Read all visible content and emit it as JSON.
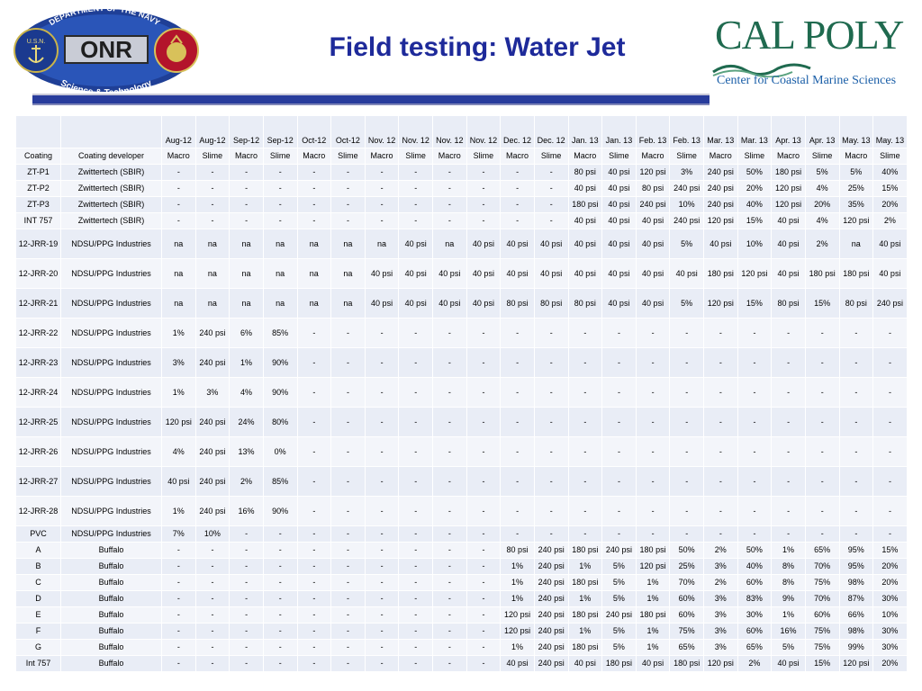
{
  "header": {
    "title": "Field testing: Water Jet",
    "onr_logo": {
      "text_department": "DEPARTMENT OF THE NAVY",
      "text_onr": "ONR",
      "text_science": "Science & Technology",
      "text_usn": "U.S.N."
    },
    "calpoly_logo": {
      "name": "CAL POLY",
      "subtitle": "Center for Coastal Marine Sciences"
    },
    "colors": {
      "title": "#1e2a9a",
      "rule": "#283c9c",
      "calpoly_green": "#1f6a4f",
      "calpoly_blue": "#1b5fa8"
    }
  },
  "table": {
    "months": [
      "Aug-12",
      "Aug-12",
      "Sep-12",
      "Sep-12",
      "Oct-12",
      "Oct-12",
      "Nov. 12",
      "Nov. 12",
      "Nov. 12",
      "Nov. 12",
      "Dec. 12",
      "Dec. 12",
      "Jan. 13",
      "Jan. 13",
      "Feb. 13",
      "Feb. 13",
      "Mar. 13",
      "Mar. 13",
      "Apr. 13",
      "Apr. 13",
      "May. 13",
      "May. 13"
    ],
    "header_coating": "Coating",
    "header_developer": "Coating developer",
    "types": [
      "Macro",
      "Slime",
      "Macro",
      "Slime",
      "Macro",
      "Slime",
      "Macro",
      "Slime",
      "Macro",
      "Slime",
      "Macro",
      "Slime",
      "Macro",
      "Slime",
      "Macro",
      "Slime",
      "Macro",
      "Slime",
      "Macro",
      "Slime",
      "Macro",
      "Slime"
    ],
    "rows": [
      {
        "coating": "ZT-P1",
        "developer": "Zwittertech (SBIR)",
        "values": [
          "-",
          "-",
          "-",
          "-",
          "-",
          "-",
          "-",
          "-",
          "-",
          "-",
          "-",
          "-",
          "80 psi",
          "40 psi",
          "120 psi",
          "3%",
          "240 psi",
          "50%",
          "180 psi",
          "5%",
          "5%",
          "40%"
        ]
      },
      {
        "coating": "ZT-P2",
        "developer": "Zwittertech (SBIR)",
        "values": [
          "-",
          "-",
          "-",
          "-",
          "-",
          "-",
          "-",
          "-",
          "-",
          "-",
          "-",
          "-",
          "40 psi",
          "40 psi",
          "80 psi",
          "240 psi",
          "240 psi",
          "20%",
          "120 psi",
          "4%",
          "25%",
          "15%"
        ]
      },
      {
        "coating": "ZT-P3",
        "developer": "Zwittertech (SBIR)",
        "values": [
          "-",
          "-",
          "-",
          "-",
          "-",
          "-",
          "-",
          "-",
          "-",
          "-",
          "-",
          "-",
          "180 psi",
          "40 psi",
          "240 psi",
          "10%",
          "240 psi",
          "40%",
          "120 psi",
          "20%",
          "35%",
          "20%"
        ]
      },
      {
        "coating": "INT 757",
        "developer": "Zwittertech (SBIR)",
        "values": [
          "-",
          "-",
          "-",
          "-",
          "-",
          "-",
          "-",
          "-",
          "-",
          "-",
          "-",
          "-",
          "40 psi",
          "40 psi",
          "40 psi",
          "240 psi",
          "120 psi",
          "15%",
          "40 psi",
          "4%",
          "120 psi",
          "2%"
        ]
      },
      {
        "coating": "12-JRR-19",
        "developer": "NDSU/PPG Industries",
        "tall": true,
        "values": [
          "na",
          "na",
          "na",
          "na",
          "na",
          "na",
          "na",
          "40 psi",
          "na",
          "40 psi",
          "40 psi",
          "40 psi",
          "40 psi",
          "40 psi",
          "40 psi",
          "5%",
          "40 psi",
          "10%",
          "40 psi",
          "2%",
          "na",
          "40 psi"
        ]
      },
      {
        "coating": "12-JRR-20",
        "developer": "NDSU/PPG Industries",
        "tall": true,
        "values": [
          "na",
          "na",
          "na",
          "na",
          "na",
          "na",
          "40 psi",
          "40 psi",
          "40 psi",
          "40 psi",
          "40 psi",
          "40 psi",
          "40 psi",
          "40 psi",
          "40 psi",
          "40 psi",
          "180 psi",
          "120 psi",
          "40 psi",
          "180 psi",
          "180 psi",
          "40 psi"
        ]
      },
      {
        "coating": "12-JRR-21",
        "developer": "NDSU/PPG Industries",
        "tall": true,
        "values": [
          "na",
          "na",
          "na",
          "na",
          "na",
          "na",
          "40 psi",
          "40 psi",
          "40 psi",
          "40 psi",
          "80 psi",
          "80 psi",
          "80 psi",
          "40 psi",
          "40 psi",
          "5%",
          "120 psi",
          "15%",
          "80 psi",
          "15%",
          "80 psi",
          "240 psi"
        ]
      },
      {
        "coating": "12-JRR-22",
        "developer": "NDSU/PPG Industries",
        "tall": true,
        "values": [
          "1%",
          "240 psi",
          "6%",
          "85%",
          "-",
          "-",
          "-",
          "-",
          "-",
          "-",
          "-",
          "-",
          "-",
          "-",
          "-",
          "-",
          "-",
          "-",
          "-",
          "-",
          "-",
          "-"
        ]
      },
      {
        "coating": "12-JRR-23",
        "developer": "NDSU/PPG Industries",
        "tall": true,
        "values": [
          "3%",
          "240 psi",
          "1%",
          "90%",
          "-",
          "-",
          "-",
          "-",
          "-",
          "-",
          "-",
          "-",
          "-",
          "-",
          "-",
          "-",
          "-",
          "-",
          "-",
          "-",
          "-",
          "-"
        ]
      },
      {
        "coating": "12-JRR-24",
        "developer": "NDSU/PPG Industries",
        "tall": true,
        "values": [
          "1%",
          "3%",
          "4%",
          "90%",
          "-",
          "-",
          "-",
          "-",
          "-",
          "-",
          "-",
          "-",
          "-",
          "-",
          "-",
          "-",
          "-",
          "-",
          "-",
          "-",
          "-",
          "-"
        ]
      },
      {
        "coating": "12-JRR-25",
        "developer": "NDSU/PPG Industries",
        "tall": true,
        "values": [
          "120 psi",
          "240 psi",
          "24%",
          "80%",
          "-",
          "-",
          "-",
          "-",
          "-",
          "-",
          "-",
          "-",
          "-",
          "-",
          "-",
          "-",
          "-",
          "-",
          "-",
          "-",
          "-",
          "-"
        ]
      },
      {
        "coating": "12-JRR-26",
        "developer": "NDSU/PPG Industries",
        "tall": true,
        "values": [
          "4%",
          "240 psi",
          "13%",
          "0%",
          "-",
          "-",
          "-",
          "-",
          "-",
          "-",
          "-",
          "-",
          "-",
          "-",
          "-",
          "-",
          "-",
          "-",
          "-",
          "-",
          "-",
          "-"
        ]
      },
      {
        "coating": "12-JRR-27",
        "developer": "NDSU/PPG Industries",
        "tall": true,
        "values": [
          "40 psi",
          "240 psi",
          "2%",
          "85%",
          "-",
          "-",
          "-",
          "-",
          "-",
          "-",
          "-",
          "-",
          "-",
          "-",
          "-",
          "-",
          "-",
          "-",
          "-",
          "-",
          "-",
          "-"
        ]
      },
      {
        "coating": "12-JRR-28",
        "developer": "NDSU/PPG Industries",
        "tall": true,
        "values": [
          "1%",
          "240 psi",
          "16%",
          "90%",
          "-",
          "-",
          "-",
          "-",
          "-",
          "-",
          "-",
          "-",
          "-",
          "-",
          "-",
          "-",
          "-",
          "-",
          "-",
          "-",
          "-",
          "-"
        ]
      },
      {
        "coating": "PVC",
        "developer": "NDSU/PPG Industries",
        "values": [
          "7%",
          "10%",
          "-",
          "-",
          "-",
          "-",
          "-",
          "-",
          "-",
          "-",
          "-",
          "-",
          "-",
          "-",
          "-",
          "-",
          "-",
          "-",
          "-",
          "-",
          "-",
          "-"
        ]
      },
      {
        "coating": "A",
        "developer": "Buffalo",
        "values": [
          "-",
          "-",
          "-",
          "-",
          "-",
          "-",
          "-",
          "-",
          "-",
          "-",
          "80 psi",
          "240 psi",
          "180 psi",
          "240 psi",
          "180 psi",
          "50%",
          "2%",
          "50%",
          "1%",
          "65%",
          "95%",
          "15%"
        ]
      },
      {
        "coating": "B",
        "developer": "Buffalo",
        "values": [
          "-",
          "-",
          "-",
          "-",
          "-",
          "-",
          "-",
          "-",
          "-",
          "-",
          "1%",
          "240 psi",
          "1%",
          "5%",
          "120 psi",
          "25%",
          "3%",
          "40%",
          "8%",
          "70%",
          "95%",
          "20%"
        ]
      },
      {
        "coating": "C",
        "developer": "Buffalo",
        "values": [
          "-",
          "-",
          "-",
          "-",
          "-",
          "-",
          "-",
          "-",
          "-",
          "-",
          "1%",
          "240 psi",
          "180 psi",
          "5%",
          "1%",
          "70%",
          "2%",
          "60%",
          "8%",
          "75%",
          "98%",
          "20%"
        ]
      },
      {
        "coating": "D",
        "developer": "Buffalo",
        "values": [
          "-",
          "-",
          "-",
          "-",
          "-",
          "-",
          "-",
          "-",
          "-",
          "-",
          "1%",
          "240 psi",
          "1%",
          "5%",
          "1%",
          "60%",
          "3%",
          "83%",
          "9%",
          "70%",
          "87%",
          "30%"
        ]
      },
      {
        "coating": "E",
        "developer": "Buffalo",
        "values": [
          "-",
          "-",
          "-",
          "-",
          "-",
          "-",
          "-",
          "-",
          "-",
          "-",
          "120 psi",
          "240 psi",
          "180 psi",
          "240 psi",
          "180 psi",
          "60%",
          "3%",
          "30%",
          "1%",
          "60%",
          "66%",
          "10%"
        ]
      },
      {
        "coating": "F",
        "developer": "Buffalo",
        "values": [
          "-",
          "-",
          "-",
          "-",
          "-",
          "-",
          "-",
          "-",
          "-",
          "-",
          "120 psi",
          "240 psi",
          "1%",
          "5%",
          "1%",
          "75%",
          "3%",
          "60%",
          "16%",
          "75%",
          "98%",
          "30%"
        ]
      },
      {
        "coating": "G",
        "developer": "Buffalo",
        "values": [
          "-",
          "-",
          "-",
          "-",
          "-",
          "-",
          "-",
          "-",
          "-",
          "-",
          "1%",
          "240 psi",
          "180 psi",
          "5%",
          "1%",
          "65%",
          "3%",
          "65%",
          "5%",
          "75%",
          "99%",
          "30%"
        ]
      },
      {
        "coating": "Int 757",
        "developer": "Buffalo",
        "values": [
          "-",
          "-",
          "-",
          "-",
          "-",
          "-",
          "-",
          "-",
          "-",
          "-",
          "40 psi",
          "240 psi",
          "40 psi",
          "180 psi",
          "40 psi",
          "180 psi",
          "120 psi",
          "2%",
          "40 psi",
          "15%",
          "120 psi",
          "20%"
        ]
      }
    ]
  }
}
